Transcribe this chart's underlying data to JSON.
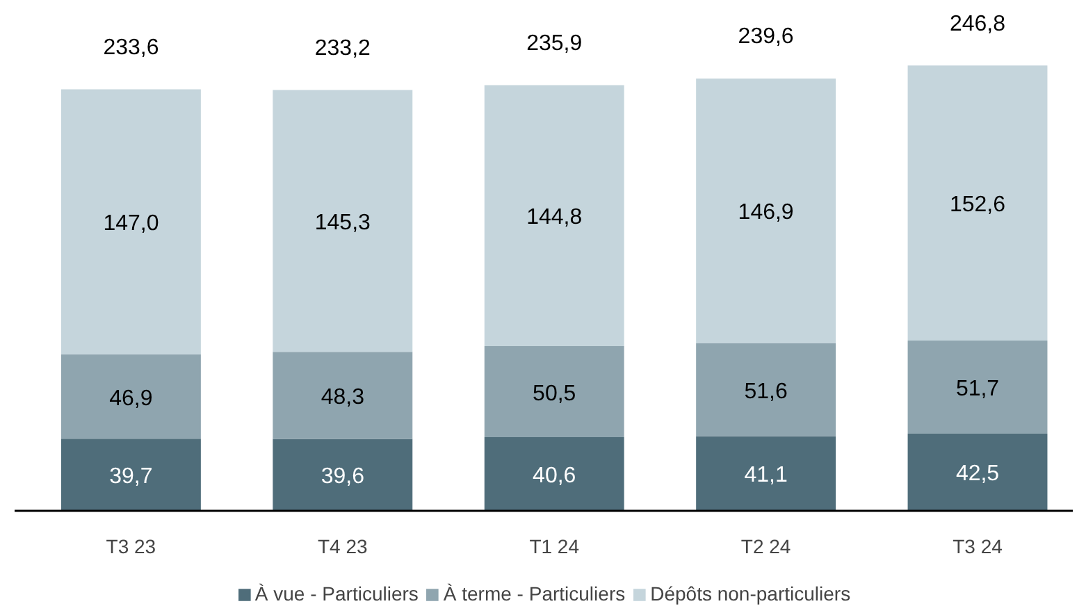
{
  "chart_data": {
    "type": "bar",
    "stacked": true,
    "categories": [
      "T3 23",
      "T4 23",
      "T1 24",
      "T2 24",
      "T3 24"
    ],
    "series": [
      {
        "name": "À vue - Particuliers",
        "color": "#4f6d7a",
        "values": [
          39.7,
          39.6,
          40.6,
          41.1,
          42.5
        ],
        "value_labels": [
          "39,7",
          "39,6",
          "40,6",
          "41,1",
          "42,5"
        ]
      },
      {
        "name": "À terme - Particuliers",
        "color": "#8fa5af",
        "values": [
          46.9,
          48.3,
          50.5,
          51.6,
          51.7
        ],
        "value_labels": [
          "46,9",
          "48,3",
          "50,5",
          "51,6",
          "51,7"
        ]
      },
      {
        "name": "Dépôts non-particuliers",
        "color": "#c5d5dc",
        "values": [
          147.0,
          145.3,
          144.8,
          146.9,
          152.6
        ],
        "value_labels": [
          "147,0",
          "145,3",
          "144,8",
          "146,9",
          "152,6"
        ]
      }
    ],
    "totals": [
      "233,6",
      "233,2",
      "235,9",
      "239,6",
      "246,8"
    ],
    "grid": false,
    "legend": "bottom"
  }
}
